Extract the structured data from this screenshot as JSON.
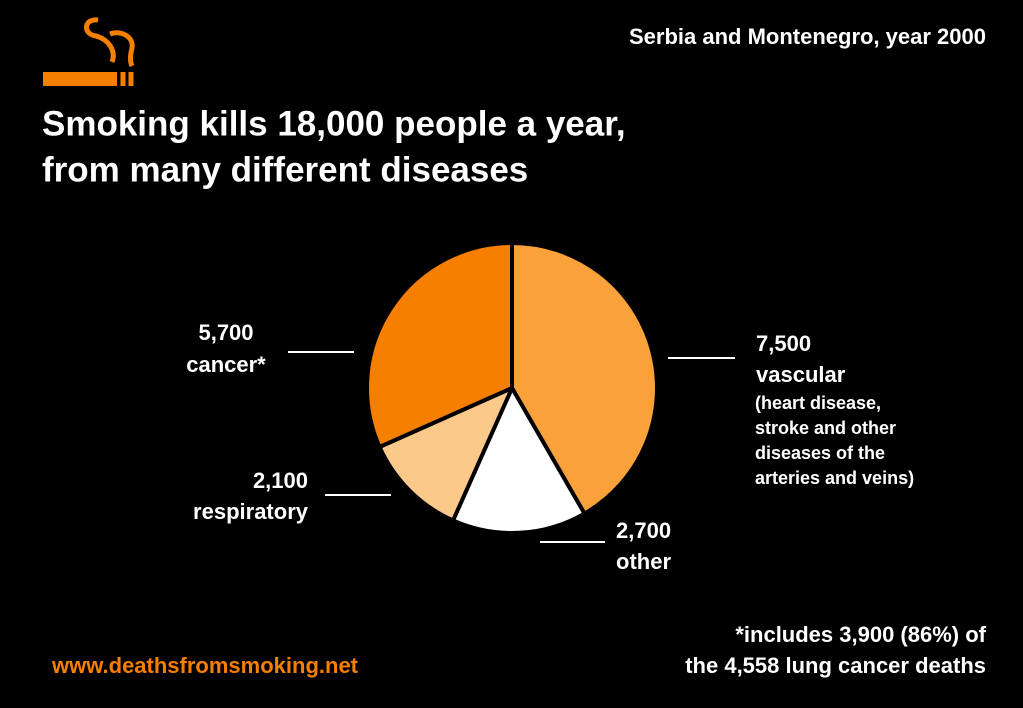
{
  "chart_data": {
    "type": "pie",
    "subtitle": "Serbia and Montenegro, year 2000",
    "title": [
      "Smoking kills 18,000 people a year,",
      "from many different diseases"
    ],
    "categories": [
      "vascular",
      "other",
      "respiratory",
      "cancer*"
    ],
    "values": [
      7500,
      2700,
      2100,
      5700
    ],
    "value_labels": [
      "7,500",
      "2,700",
      "2,100",
      "5,700"
    ],
    "colors": [
      "#f9a13a",
      "#ffffff",
      "#fbc98a",
      "#f77f00"
    ],
    "annotations": {
      "vascular_detail": [
        "(heart disease,",
        "stroke and other",
        "diseases of the",
        "arteries and veins)"
      ],
      "footnote": [
        "*includes 3,900 (86%) of",
        "the 4,558 lung cancer deaths"
      ]
    },
    "source": "www.deathsfromsmoking.net"
  }
}
